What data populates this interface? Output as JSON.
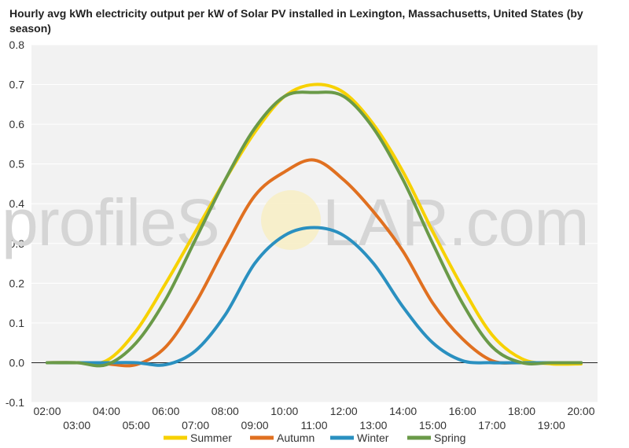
{
  "colors": {
    "summer": "#f7d100",
    "autumn": "#e07020",
    "winter": "#2a90c0",
    "spring": "#6a9a48",
    "plot_background": "#f2f2f2",
    "gridline": "#ffffff",
    "zero_line": "#222222"
  },
  "watermark": {
    "text_left": "profileS",
    "text_right": "LAR.com"
  },
  "chart_data": {
    "type": "line",
    "title": "Hourly avg kWh electricity output per kW of Solar PV installed in Lexington, Massachusetts, United States (by season)",
    "xlabel": "",
    "ylabel": "",
    "ylim": [
      -0.1,
      0.8
    ],
    "yticks": [
      "-0.1",
      "0.0",
      "0.1",
      "0.2",
      "0.3",
      "0.4",
      "0.5",
      "0.6",
      "0.7",
      "0.8"
    ],
    "x": [
      "02:00",
      "03:00",
      "04:00",
      "05:00",
      "06:00",
      "07:00",
      "08:00",
      "09:00",
      "10:00",
      "11:00",
      "12:00",
      "13:00",
      "14:00",
      "15:00",
      "16:00",
      "17:00",
      "18:00",
      "19:00",
      "20:00"
    ],
    "grid": true,
    "legend_position": "bottom",
    "series": [
      {
        "name": "Summer",
        "values": [
          0,
          0,
          0.005,
          0.08,
          0.2,
          0.33,
          0.46,
          0.58,
          0.67,
          0.7,
          0.68,
          0.6,
          0.48,
          0.33,
          0.19,
          0.07,
          0.01,
          -0.003,
          -0.003
        ]
      },
      {
        "name": "Autumn",
        "values": [
          0,
          0,
          -0.003,
          -0.005,
          0.04,
          0.15,
          0.29,
          0.42,
          0.48,
          0.51,
          0.46,
          0.38,
          0.28,
          0.15,
          0.06,
          0.005,
          0,
          0,
          0
        ]
      },
      {
        "name": "Winter",
        "values": [
          0,
          0,
          0,
          0,
          -0.005,
          0.03,
          0.12,
          0.25,
          0.32,
          0.34,
          0.32,
          0.25,
          0.14,
          0.05,
          0.005,
          0,
          0,
          0,
          0
        ]
      },
      {
        "name": "Spring",
        "values": [
          0,
          0,
          -0.005,
          0.05,
          0.16,
          0.31,
          0.46,
          0.59,
          0.67,
          0.68,
          0.67,
          0.59,
          0.46,
          0.3,
          0.15,
          0.04,
          0,
          0,
          0
        ]
      }
    ]
  }
}
